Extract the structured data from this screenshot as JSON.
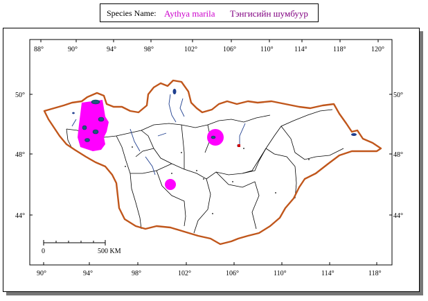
{
  "header": {
    "label": "Species Name:",
    "scientific_name": "Aythya marila",
    "mongolian_name": "Тэнгисийн шумбуур"
  },
  "colors": {
    "border": "#c0561b",
    "range": "#ff00ff",
    "water": "#1f3f8f",
    "inner": "#000000"
  },
  "lon_labels": [
    "88°",
    "90°",
    "94°",
    "98°",
    "102°",
    "106°",
    "110°",
    "114°",
    "118°",
    "120°"
  ],
  "lon_labels_bottom": [
    "90°",
    "94°",
    "98°",
    "102°",
    "106°",
    "110°",
    "114°",
    "118°"
  ],
  "lat_labels_left": [
    "50°",
    "48°",
    "44°"
  ],
  "lat_labels_right": [
    "50°",
    "48°",
    "44°"
  ],
  "scale_bar": {
    "start": "0",
    "end": "500 KM"
  }
}
